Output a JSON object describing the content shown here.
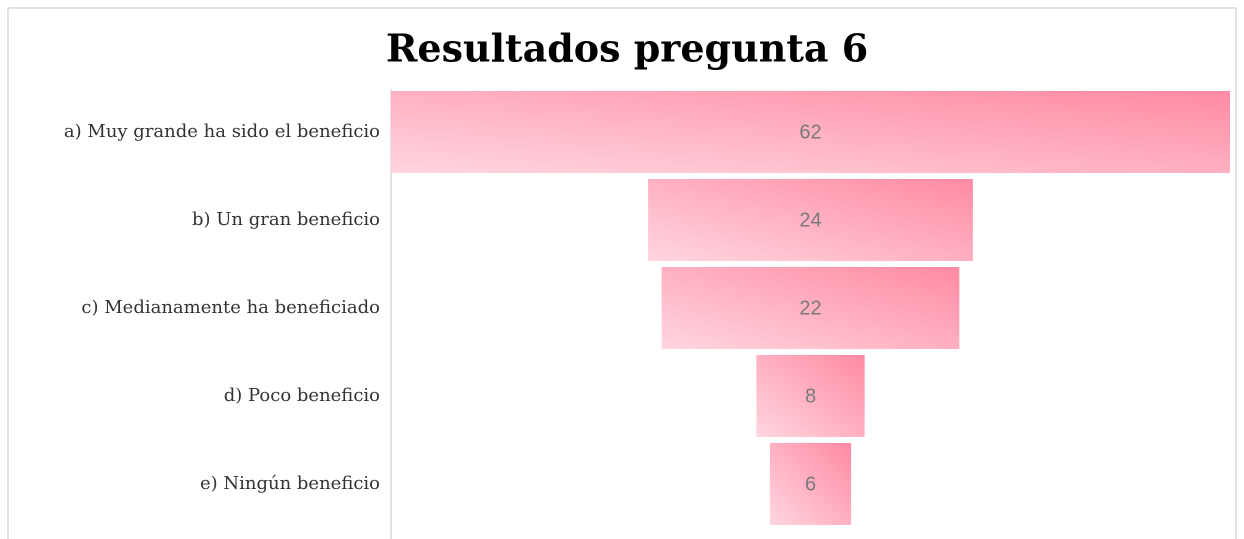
{
  "chart_data": {
    "type": "funnel",
    "title": "Resultados pregunta 6",
    "categories": [
      "a) Muy grande ha sido el beneficio",
      "b) Un gran beneficio",
      "c) Medianamente ha beneficiado",
      "d) Poco beneficio",
      "e) Ningún beneficio"
    ],
    "values": [
      62,
      24,
      22,
      8,
      6
    ],
    "color": "#ff8ba4"
  }
}
